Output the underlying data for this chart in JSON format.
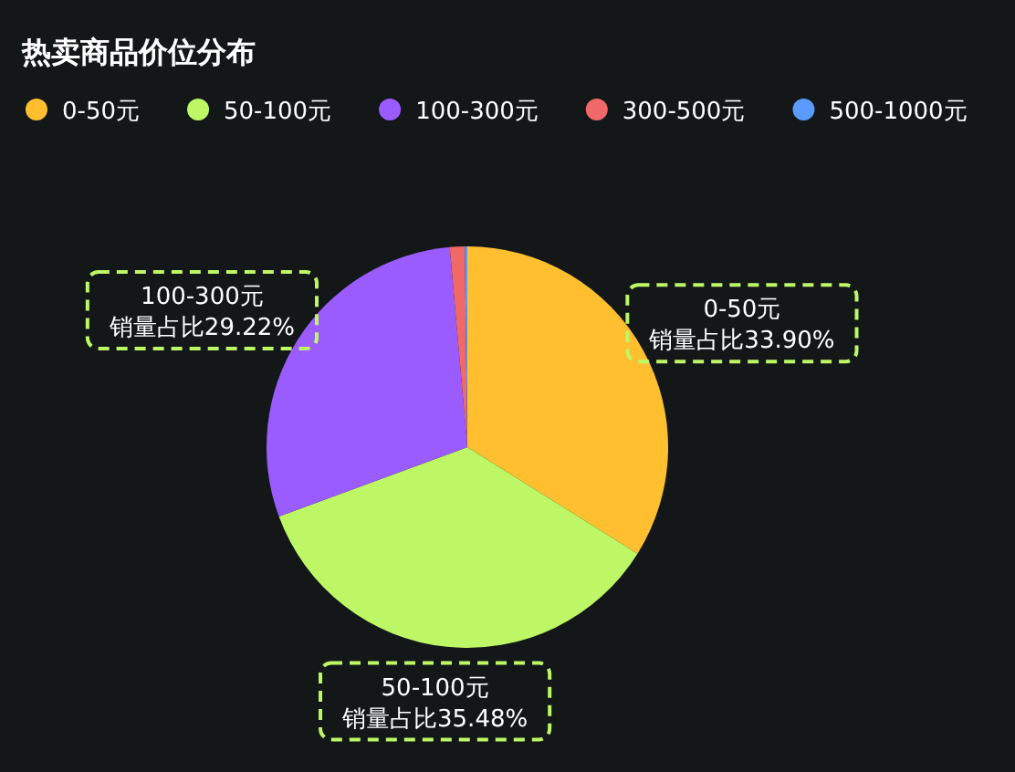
{
  "chart_data": {
    "type": "pie",
    "title": "热卖商品价位分布",
    "categories": [
      "0-50元",
      "50-100元",
      "100-300元",
      "300-500元",
      "500-1000元"
    ],
    "values": [
      33.9,
      35.48,
      29.22,
      1.2,
      0.2
    ],
    "colors": [
      "#ffbf2f",
      "#bdf766",
      "#9b5cff",
      "#f06868",
      "#5b9bff"
    ],
    "value_labels": [
      "0-50元销量占比33.90%",
      "50-100元销量占比35.48%",
      "100-300元销量占比29.22%",
      null,
      null
    ],
    "legend": "top"
  }
}
